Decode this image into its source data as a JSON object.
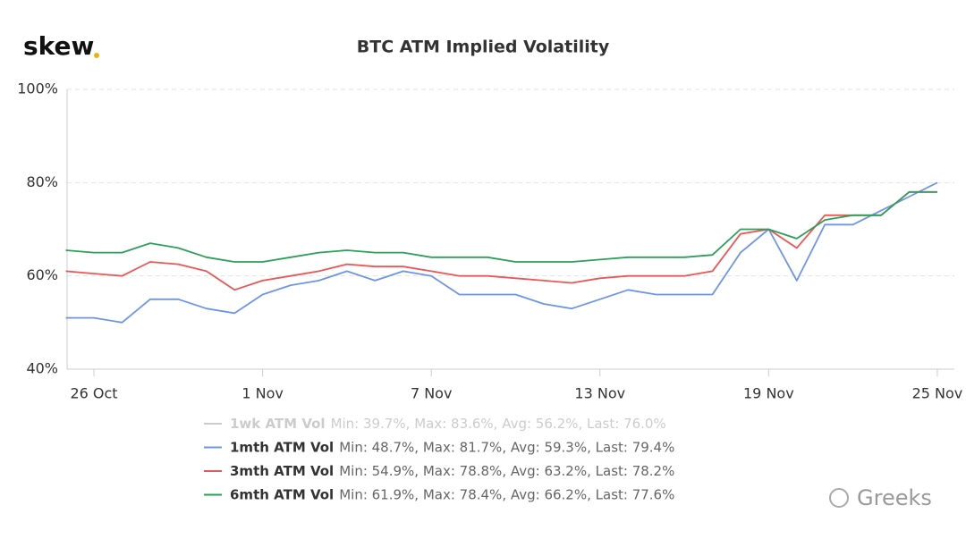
{
  "logo": "skew",
  "watermark": "Greeks",
  "chart_data": {
    "type": "line",
    "title": "BTC ATM Implied Volatility",
    "categories": [
      null,
      "26 Oct",
      null,
      null,
      null,
      null,
      null,
      "1 Nov",
      null,
      null,
      null,
      null,
      null,
      "7 Nov",
      null,
      null,
      null,
      null,
      null,
      "13 Nov",
      null,
      null,
      null,
      null,
      null,
      "19 Nov",
      null,
      null,
      null,
      null,
      null,
      "25 Nov"
    ],
    "ylim": [
      40,
      100
    ],
    "yticks": [
      {
        "value": 40,
        "label": "40%"
      },
      {
        "value": 60,
        "label": "60%"
      },
      {
        "value": 80,
        "label": "80%"
      },
      {
        "value": 100,
        "label": "100%"
      }
    ],
    "grid": true,
    "series": [
      {
        "name": "1wk ATM Vol",
        "stats": "Min: 39.7%, Max: 83.6%, Avg: 56.2%, Last: 76.0%",
        "color": "#cccccc",
        "visible": false,
        "values": [
          null,
          null,
          null,
          null,
          null,
          null,
          null,
          null,
          null,
          null,
          null,
          null,
          null,
          null,
          null,
          null,
          null,
          null,
          null,
          null,
          null,
          null,
          null,
          null,
          null,
          null,
          null,
          null,
          null,
          null,
          null,
          null
        ]
      },
      {
        "name": "1mth ATM Vol",
        "stats": "Min: 48.7%, Max: 81.7%, Avg: 59.3%, Last: 79.4%",
        "color": "#6d95e8",
        "visible": true,
        "values": [
          51,
          51,
          50,
          55,
          55,
          53,
          52,
          56,
          58,
          59,
          61,
          59,
          61,
          60,
          56,
          56,
          56,
          54,
          53,
          55,
          57,
          56,
          56,
          56,
          65,
          70,
          59,
          71,
          71,
          74,
          77,
          80
        ]
      },
      {
        "name": "3mth ATM Vol",
        "stats": "Min: 54.9%, Max: 78.8%, Avg: 63.2%, Last: 78.2%",
        "color": "#ec5656",
        "visible": true,
        "values": [
          61,
          60.5,
          60,
          63,
          62.5,
          61,
          57,
          59,
          60,
          61,
          62.5,
          62,
          62,
          61,
          60,
          60,
          59.5,
          59,
          58.5,
          59.5,
          60,
          60,
          60,
          61,
          69,
          70,
          66,
          73,
          73,
          73,
          78,
          78
        ]
      },
      {
        "name": "6mth ATM Vol",
        "stats": "Min: 61.9%, Max: 78.4%, Avg: 66.2%, Last: 77.6%",
        "color": "#2e9e5b",
        "visible": true,
        "values": [
          65.5,
          65,
          65,
          67,
          66,
          64,
          63,
          63,
          64,
          65,
          65.5,
          65,
          65,
          64,
          64,
          64,
          63,
          63,
          63,
          63.5,
          64,
          64,
          64,
          64.5,
          70,
          70,
          68,
          72,
          73,
          73,
          78,
          78
        ]
      }
    ]
  }
}
